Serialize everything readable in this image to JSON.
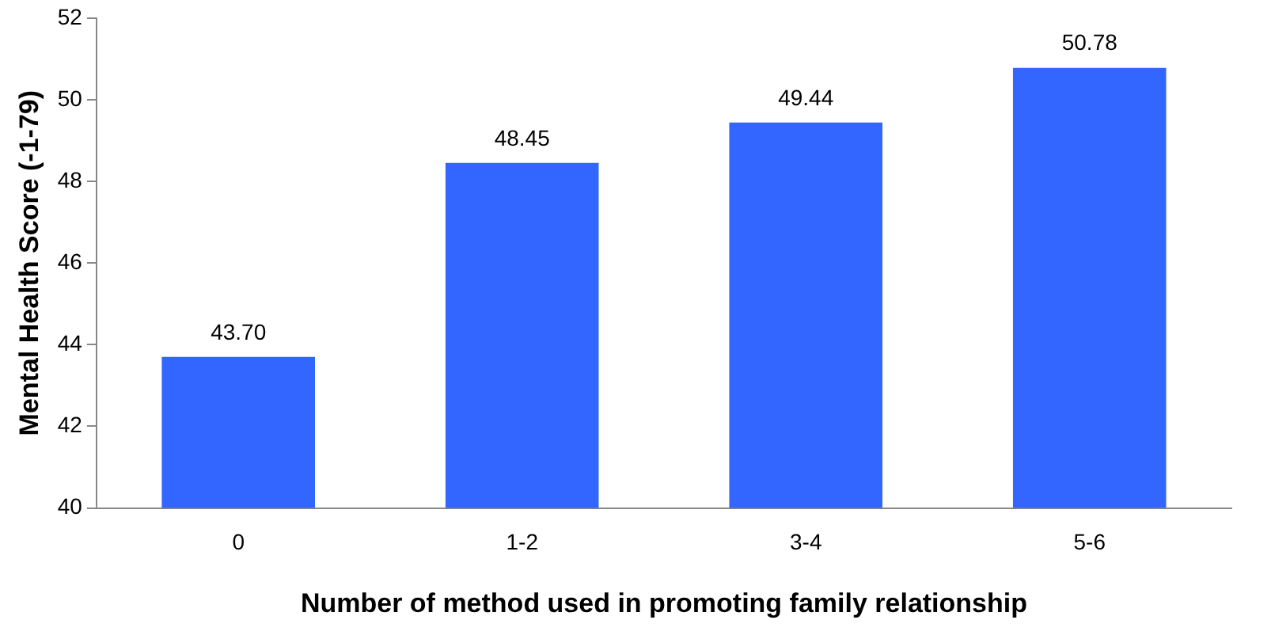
{
  "chart_data": {
    "type": "bar",
    "xlabel": "Number of method used in promoting family relationship",
    "ylabel": "Mental Health Score (-1-79)",
    "categories": [
      "0",
      "1-2",
      "3-4",
      "5-6"
    ],
    "values": [
      43.7,
      48.45,
      49.44,
      50.78
    ],
    "value_labels": [
      "43.70",
      "48.45",
      "49.44",
      "50.78"
    ],
    "color": "#3366ff",
    "ylim": [
      40,
      52
    ],
    "yticks": [
      40,
      42,
      44,
      46,
      48,
      50,
      52
    ],
    "grid": false,
    "legend": false
  }
}
